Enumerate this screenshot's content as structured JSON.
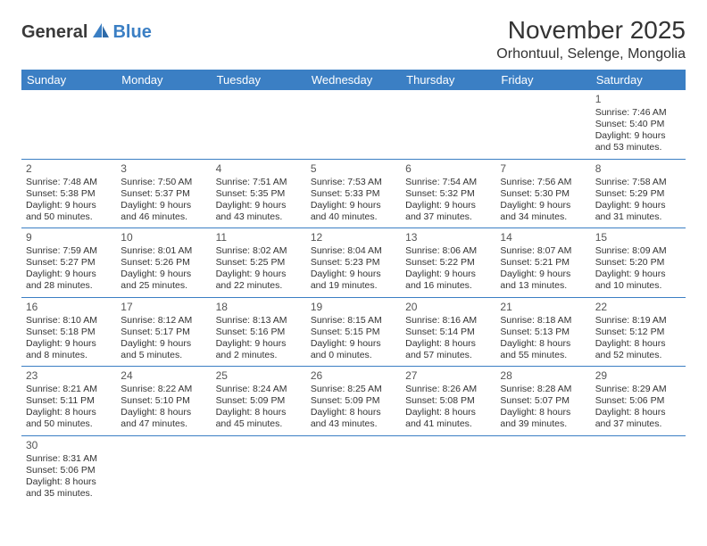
{
  "logo": {
    "text1": "General",
    "text2": "Blue"
  },
  "header": {
    "title": "November 2025",
    "location": "Orhontuul, Selenge, Mongolia"
  },
  "colors": {
    "headerBg": "#3b7fc4",
    "headerText": "#ffffff",
    "ruleColor": "#3b7fc4",
    "logoBlue": "#3b7fc4",
    "logoDark": "#3a3a3a"
  },
  "dayHeaders": [
    "Sunday",
    "Monday",
    "Tuesday",
    "Wednesday",
    "Thursday",
    "Friday",
    "Saturday"
  ],
  "weeks": [
    [
      null,
      null,
      null,
      null,
      null,
      null,
      {
        "n": "1",
        "sunrise": "Sunrise: 7:46 AM",
        "sunset": "Sunset: 5:40 PM",
        "daylight": "Daylight: 9 hours and 53 minutes."
      }
    ],
    [
      {
        "n": "2",
        "sunrise": "Sunrise: 7:48 AM",
        "sunset": "Sunset: 5:38 PM",
        "daylight": "Daylight: 9 hours and 50 minutes."
      },
      {
        "n": "3",
        "sunrise": "Sunrise: 7:50 AM",
        "sunset": "Sunset: 5:37 PM",
        "daylight": "Daylight: 9 hours and 46 minutes."
      },
      {
        "n": "4",
        "sunrise": "Sunrise: 7:51 AM",
        "sunset": "Sunset: 5:35 PM",
        "daylight": "Daylight: 9 hours and 43 minutes."
      },
      {
        "n": "5",
        "sunrise": "Sunrise: 7:53 AM",
        "sunset": "Sunset: 5:33 PM",
        "daylight": "Daylight: 9 hours and 40 minutes."
      },
      {
        "n": "6",
        "sunrise": "Sunrise: 7:54 AM",
        "sunset": "Sunset: 5:32 PM",
        "daylight": "Daylight: 9 hours and 37 minutes."
      },
      {
        "n": "7",
        "sunrise": "Sunrise: 7:56 AM",
        "sunset": "Sunset: 5:30 PM",
        "daylight": "Daylight: 9 hours and 34 minutes."
      },
      {
        "n": "8",
        "sunrise": "Sunrise: 7:58 AM",
        "sunset": "Sunset: 5:29 PM",
        "daylight": "Daylight: 9 hours and 31 minutes."
      }
    ],
    [
      {
        "n": "9",
        "sunrise": "Sunrise: 7:59 AM",
        "sunset": "Sunset: 5:27 PM",
        "daylight": "Daylight: 9 hours and 28 minutes."
      },
      {
        "n": "10",
        "sunrise": "Sunrise: 8:01 AM",
        "sunset": "Sunset: 5:26 PM",
        "daylight": "Daylight: 9 hours and 25 minutes."
      },
      {
        "n": "11",
        "sunrise": "Sunrise: 8:02 AM",
        "sunset": "Sunset: 5:25 PM",
        "daylight": "Daylight: 9 hours and 22 minutes."
      },
      {
        "n": "12",
        "sunrise": "Sunrise: 8:04 AM",
        "sunset": "Sunset: 5:23 PM",
        "daylight": "Daylight: 9 hours and 19 minutes."
      },
      {
        "n": "13",
        "sunrise": "Sunrise: 8:06 AM",
        "sunset": "Sunset: 5:22 PM",
        "daylight": "Daylight: 9 hours and 16 minutes."
      },
      {
        "n": "14",
        "sunrise": "Sunrise: 8:07 AM",
        "sunset": "Sunset: 5:21 PM",
        "daylight": "Daylight: 9 hours and 13 minutes."
      },
      {
        "n": "15",
        "sunrise": "Sunrise: 8:09 AM",
        "sunset": "Sunset: 5:20 PM",
        "daylight": "Daylight: 9 hours and 10 minutes."
      }
    ],
    [
      {
        "n": "16",
        "sunrise": "Sunrise: 8:10 AM",
        "sunset": "Sunset: 5:18 PM",
        "daylight": "Daylight: 9 hours and 8 minutes."
      },
      {
        "n": "17",
        "sunrise": "Sunrise: 8:12 AM",
        "sunset": "Sunset: 5:17 PM",
        "daylight": "Daylight: 9 hours and 5 minutes."
      },
      {
        "n": "18",
        "sunrise": "Sunrise: 8:13 AM",
        "sunset": "Sunset: 5:16 PM",
        "daylight": "Daylight: 9 hours and 2 minutes."
      },
      {
        "n": "19",
        "sunrise": "Sunrise: 8:15 AM",
        "sunset": "Sunset: 5:15 PM",
        "daylight": "Daylight: 9 hours and 0 minutes."
      },
      {
        "n": "20",
        "sunrise": "Sunrise: 8:16 AM",
        "sunset": "Sunset: 5:14 PM",
        "daylight": "Daylight: 8 hours and 57 minutes."
      },
      {
        "n": "21",
        "sunrise": "Sunrise: 8:18 AM",
        "sunset": "Sunset: 5:13 PM",
        "daylight": "Daylight: 8 hours and 55 minutes."
      },
      {
        "n": "22",
        "sunrise": "Sunrise: 8:19 AM",
        "sunset": "Sunset: 5:12 PM",
        "daylight": "Daylight: 8 hours and 52 minutes."
      }
    ],
    [
      {
        "n": "23",
        "sunrise": "Sunrise: 8:21 AM",
        "sunset": "Sunset: 5:11 PM",
        "daylight": "Daylight: 8 hours and 50 minutes."
      },
      {
        "n": "24",
        "sunrise": "Sunrise: 8:22 AM",
        "sunset": "Sunset: 5:10 PM",
        "daylight": "Daylight: 8 hours and 47 minutes."
      },
      {
        "n": "25",
        "sunrise": "Sunrise: 8:24 AM",
        "sunset": "Sunset: 5:09 PM",
        "daylight": "Daylight: 8 hours and 45 minutes."
      },
      {
        "n": "26",
        "sunrise": "Sunrise: 8:25 AM",
        "sunset": "Sunset: 5:09 PM",
        "daylight": "Daylight: 8 hours and 43 minutes."
      },
      {
        "n": "27",
        "sunrise": "Sunrise: 8:26 AM",
        "sunset": "Sunset: 5:08 PM",
        "daylight": "Daylight: 8 hours and 41 minutes."
      },
      {
        "n": "28",
        "sunrise": "Sunrise: 8:28 AM",
        "sunset": "Sunset: 5:07 PM",
        "daylight": "Daylight: 8 hours and 39 minutes."
      },
      {
        "n": "29",
        "sunrise": "Sunrise: 8:29 AM",
        "sunset": "Sunset: 5:06 PM",
        "daylight": "Daylight: 8 hours and 37 minutes."
      }
    ],
    [
      {
        "n": "30",
        "sunrise": "Sunrise: 8:31 AM",
        "sunset": "Sunset: 5:06 PM",
        "daylight": "Daylight: 8 hours and 35 minutes."
      },
      null,
      null,
      null,
      null,
      null,
      null
    ]
  ]
}
